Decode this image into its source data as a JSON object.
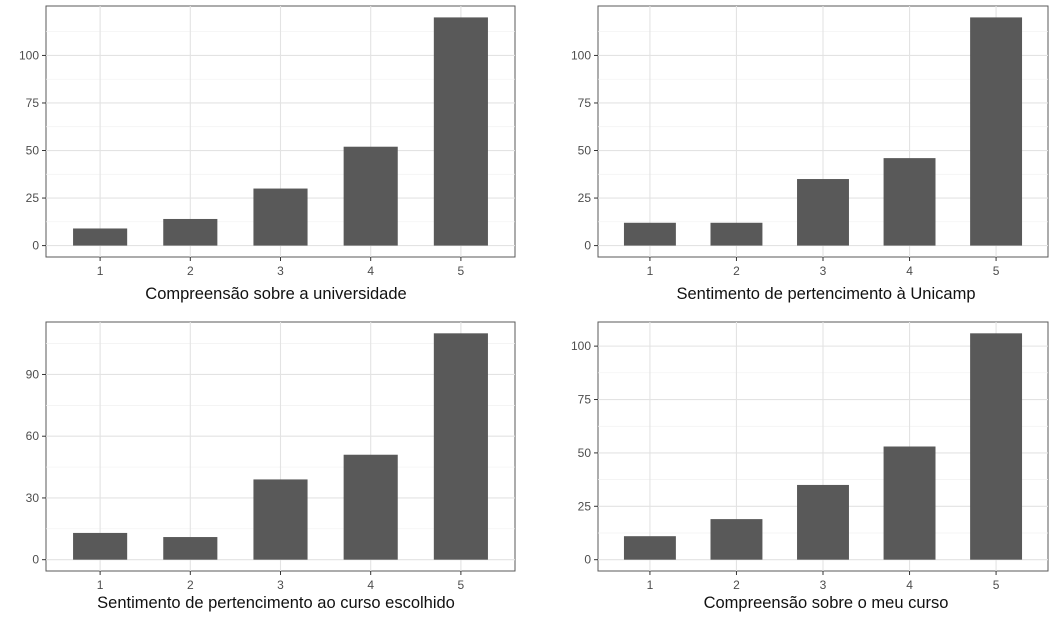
{
  "chart_data": [
    {
      "type": "bar",
      "title": "",
      "xlabel": "Compreensão sobre a universidade",
      "ylabel": "",
      "categories": [
        "1",
        "2",
        "3",
        "4",
        "5"
      ],
      "values": [
        9,
        14,
        30,
        52,
        120
      ],
      "ylim": [
        -6,
        126
      ],
      "yticks": [
        0,
        25,
        50,
        75,
        100
      ],
      "grid": true,
      "bar_color": "#595959"
    },
    {
      "type": "bar",
      "title": "",
      "xlabel": "Sentimento de pertencimento à Unicamp",
      "ylabel": "",
      "categories": [
        "1",
        "2",
        "3",
        "4",
        "5"
      ],
      "values": [
        12,
        12,
        35,
        46,
        120
      ],
      "ylim": [
        -6,
        126
      ],
      "yticks": [
        0,
        25,
        50,
        75,
        100
      ],
      "grid": true,
      "bar_color": "#595959"
    },
    {
      "type": "bar",
      "title": "",
      "xlabel": "Sentimento de pertencimento ao curso escolhido",
      "ylabel": "",
      "categories": [
        "1",
        "2",
        "3",
        "4",
        "5"
      ],
      "values": [
        13,
        11,
        39,
        51,
        110
      ],
      "ylim": [
        -5.5,
        115.5
      ],
      "yticks": [
        0,
        30,
        60,
        90
      ],
      "grid": true,
      "bar_color": "#595959"
    },
    {
      "type": "bar",
      "title": "",
      "xlabel": "Compreensão sobre o meu curso",
      "ylabel": "",
      "categories": [
        "1",
        "2",
        "3",
        "4",
        "5"
      ],
      "values": [
        11,
        19,
        35,
        53,
        106
      ],
      "ylim": [
        -5.3,
        111.3
      ],
      "yticks": [
        0,
        25,
        50,
        75,
        100
      ],
      "grid": true,
      "bar_color": "#595959"
    }
  ]
}
